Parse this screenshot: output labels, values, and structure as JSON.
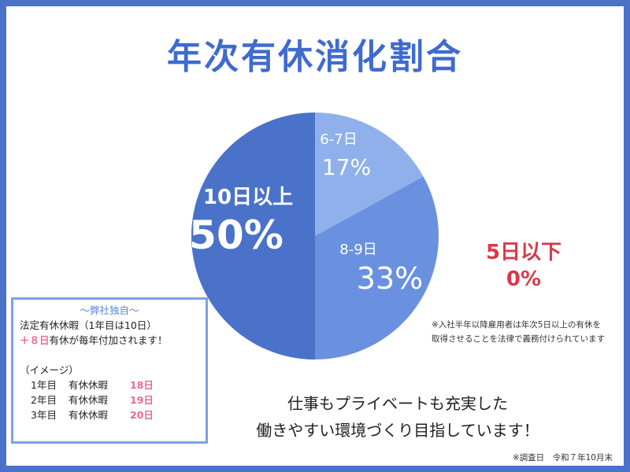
{
  "title": "年次有休消化割合",
  "chart_data": {
    "type": "pie",
    "title": "年次有休消化割合",
    "slices": [
      {
        "label": "10日以上",
        "value": 50,
        "value_label": "50%",
        "color": "#4a72c9"
      },
      {
        "label": "6-7日",
        "value": 17,
        "value_label": "17%",
        "color": "#8fb0ea"
      },
      {
        "label": "8-9日",
        "value": 33,
        "value_label": "33%",
        "color": "#6a91e0"
      },
      {
        "label": "5日以下",
        "value": 0,
        "value_label": "0%",
        "color": "#d9394b"
      }
    ]
  },
  "legal_note_lines": [
    "※入社半年以降雇用者は年次5日以上の有休を",
    "取得させることを法律で義務付けられています"
  ],
  "company_box": {
    "heading": "～弊社独自～",
    "line1": "法定有休休暇（1年目は10日）",
    "line2_highlight": "＋８日",
    "line2_rest": "有休が毎年付加されます！",
    "image_label": "（イメージ）",
    "rows": [
      {
        "year": "1年目",
        "type": "有休休暇",
        "days": "18日"
      },
      {
        "year": "2年目",
        "type": "有休休暇",
        "days": "19日"
      },
      {
        "year": "3年目",
        "type": "有休休暇",
        "days": "20日"
      }
    ]
  },
  "message_lines": [
    "仕事もプライベートも充実した",
    "働きやすい環境づくり目指しています！"
  ],
  "survey_date": "※調査日　令和７年10月末"
}
